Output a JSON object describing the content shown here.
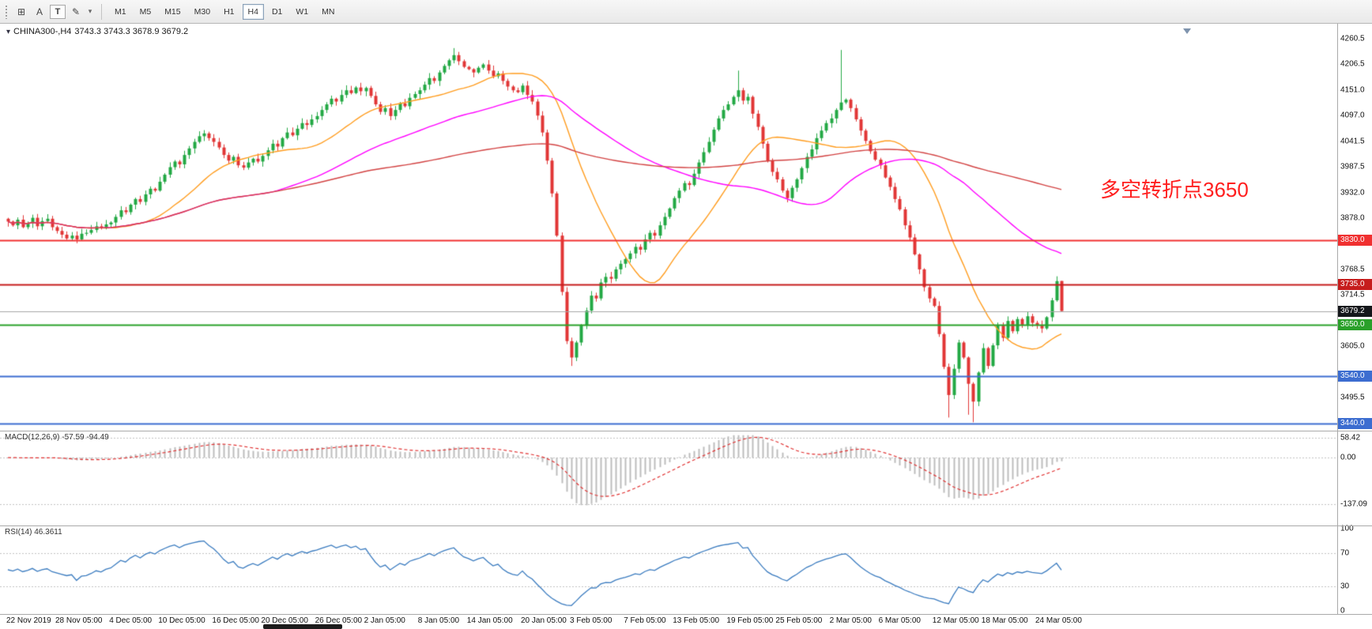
{
  "toolbar": {
    "tools": [
      {
        "id": "grid-tool",
        "glyph": "⊞"
      },
      {
        "id": "text-label-tool",
        "glyph": "A"
      },
      {
        "id": "text-box-tool",
        "glyph": "T"
      },
      {
        "id": "draw-tool",
        "glyph": "✎"
      },
      {
        "id": "draw-tool-caret",
        "glyph": "▾"
      }
    ],
    "timeframes": [
      "M1",
      "M5",
      "M15",
      "M30",
      "H1",
      "H4",
      "D1",
      "W1",
      "MN"
    ],
    "active_timeframe": "H4"
  },
  "chart": {
    "menu_icon": "▾",
    "title_symbol": "CHINA300-,H4",
    "title_ohlc": "3743.3 3743.3 3678.9 3679.2",
    "annotation": {
      "text": "多空转折点3650",
      "color": "#ff1f1f"
    },
    "hlines": [
      {
        "price": 3830,
        "color": "#f03030",
        "width": 2
      },
      {
        "price": 3735,
        "color": "#c61d1d",
        "width": 2
      },
      {
        "price": 3679.2,
        "color": "#a6a6a6",
        "width": 1
      },
      {
        "price": 3650,
        "color": "#2aa02a",
        "width": 2
      },
      {
        "price": 3540,
        "color": "#3c6dd0",
        "width": 2
      },
      {
        "price": 3440,
        "color": "#3c6dd0",
        "width": 2
      }
    ],
    "price_axis": {
      "ticks": [
        "4260.5",
        "4206.5",
        "4151.0",
        "4097.0",
        "4041.5",
        "3987.5",
        "3932.0",
        "3878.0",
        "3824.0",
        "3768.5",
        "3714.5",
        "3605.0",
        "3495.5"
      ],
      "tags": [
        {
          "text": "3830.0",
          "price": 3830,
          "bg": "#f03030"
        },
        {
          "text": "3735.0",
          "price": 3735,
          "bg": "#c61d1d"
        },
        {
          "text": "3679.2",
          "price": 3679.2,
          "bg": "#15171b"
        },
        {
          "text": "3650.0",
          "price": 3650,
          "bg": "#2aa02a"
        },
        {
          "text": "3540.0",
          "price": 3540,
          "bg": "#3c6dd0"
        },
        {
          "text": "3440.0",
          "price": 3440,
          "bg": "#3c6dd0"
        }
      ]
    },
    "time_axis": {
      "labels": [
        {
          "text": "22 Nov 2019",
          "bar": 0
        },
        {
          "text": "28 Nov 05:00",
          "bar": 10
        },
        {
          "text": "4 Dec 05:00",
          "bar": 21
        },
        {
          "text": "10 Dec 05:00",
          "bar": 31
        },
        {
          "text": "16 Dec 05:00",
          "bar": 42
        },
        {
          "text": "20 Dec 05:00",
          "bar": 52
        },
        {
          "text": "26 Dec 05:00",
          "bar": 63
        },
        {
          "text": "2 Jan 05:00",
          "bar": 73
        },
        {
          "text": "8 Jan 05:00",
          "bar": 84
        },
        {
          "text": "14 Jan 05:00",
          "bar": 94
        },
        {
          "text": "20 Jan 05:00",
          "bar": 105
        },
        {
          "text": "3 Feb 05:00",
          "bar": 115
        },
        {
          "text": "7 Feb 05:00",
          "bar": 126
        },
        {
          "text": "13 Feb 05:00",
          "bar": 136
        },
        {
          "text": "19 Feb 05:00",
          "bar": 147
        },
        {
          "text": "25 Feb 05:00",
          "bar": 157
        },
        {
          "text": "2 Mar 05:00",
          "bar": 168
        },
        {
          "text": "6 Mar 05:00",
          "bar": 178
        },
        {
          "text": "12 Mar 05:00",
          "bar": 189
        },
        {
          "text": "18 Mar 05:00",
          "bar": 199
        },
        {
          "text": "24 Mar 05:00",
          "bar": 210
        }
      ]
    }
  },
  "macd": {
    "header": "MACD(12,26,9) -57.59 -94.49",
    "fast": 12,
    "slow": 26,
    "signal": 9,
    "levels": [
      {
        "text": "58.42",
        "value": 58.42
      },
      {
        "text": "0.00",
        "value": 0
      },
      {
        "text": "-137.09",
        "value": -137.09
      }
    ]
  },
  "rsi": {
    "header": "RSI(14) 46.3611",
    "period": 14,
    "levels": [
      {
        "text": "100",
        "value": 100
      },
      {
        "text": "70",
        "value": 70
      },
      {
        "text": "30",
        "value": 30
      },
      {
        "text": "0",
        "value": 0
      }
    ]
  },
  "colors": {
    "candle_up": "#23a844",
    "candle_down": "#e13636",
    "macd_hist": "#bdbdbd",
    "macd_signal": "#e03030",
    "rsi_line": "#3a7bbf",
    "level_line": "#c2c2c2"
  },
  "chart_data": {
    "type": "candlestick",
    "symbol": "CHINA300-",
    "timeframe": "H4",
    "y_axis": {
      "min": 3424,
      "max": 4292
    },
    "macd_axis": {
      "min": -190,
      "max": 70
    },
    "last_ohlc": {
      "open": 3743.3,
      "high": 3743.3,
      "low": 3678.9,
      "close": 3679.2
    },
    "moving_averages": [
      {
        "period": 20,
        "color": "#ff9c1e"
      },
      {
        "period": 55,
        "color": "#ff00ff"
      },
      {
        "period": 150,
        "color": "#d24242"
      }
    ],
    "wick_overrides": {
      "91": {
        "high": 4240
      },
      "110": {
        "high": 4066
      },
      "115": {
        "low": 3562
      },
      "149": {
        "high": 4192
      },
      "170": {
        "high": 4236
      },
      "192": {
        "low": 3452
      },
      "196": {
        "low": 3458
      },
      "197": {
        "low": 3442
      }
    },
    "closes": [
      3870,
      3862,
      3874,
      3858,
      3866,
      3878,
      3860,
      3871,
      3876,
      3858,
      3850,
      3842,
      3834,
      3840,
      3832,
      3844,
      3846,
      3852,
      3860,
      3856,
      3864,
      3868,
      3880,
      3894,
      3890,
      3906,
      3918,
      3912,
      3928,
      3940,
      3936,
      3955,
      3970,
      3986,
      3998,
      3992,
      4012,
      4026,
      4040,
      4052,
      4058,
      4048,
      4040,
      4028,
      4012,
      4000,
      4008,
      3990,
      3985,
      3996,
      4004,
      3998,
      4010,
      4022,
      4036,
      4030,
      4048,
      4060,
      4054,
      4068,
      4080,
      4076,
      4088,
      4095,
      4108,
      4120,
      4132,
      4126,
      4140,
      4150,
      4144,
      4156,
      4148,
      4155,
      4138,
      4120,
      4104,
      4112,
      4095,
      4108,
      4122,
      4116,
      4134,
      4142,
      4150,
      4162,
      4176,
      4170,
      4188,
      4202,
      4214,
      4225,
      4212,
      4200,
      4195,
      4188,
      4198,
      4205,
      4192,
      4180,
      4186,
      4170,
      4158,
      4150,
      4146,
      4160,
      4140,
      4126,
      4096,
      4060,
      4000,
      3930,
      3840,
      3720,
      3615,
      3580,
      3612,
      3648,
      3680,
      3712,
      3706,
      3740,
      3752,
      3748,
      3768,
      3780,
      3790,
      3802,
      3816,
      3810,
      3832,
      3846,
      3840,
      3862,
      3880,
      3898,
      3920,
      3936,
      3952,
      3948,
      3972,
      3996,
      4018,
      4040,
      4066,
      4090,
      4108,
      4120,
      4136,
      4150,
      4128,
      4136,
      4100,
      4072,
      4036,
      4000,
      3976,
      3960,
      3936,
      3920,
      3942,
      3960,
      3984,
      4008,
      4024,
      4048,
      4064,
      4080,
      4090,
      4108,
      4124,
      4130,
      4112,
      4088,
      4064,
      4042,
      4020,
      4002,
      3990,
      3964,
      3944,
      3918,
      3896,
      3862,
      3836,
      3800,
      3768,
      3730,
      3706,
      3690,
      3630,
      3560,
      3500,
      3556,
      3612,
      3580,
      3524,
      3486,
      3548,
      3600,
      3562,
      3606,
      3648,
      3622,
      3658,
      3636,
      3662,
      3650,
      3668,
      3654,
      3648,
      3642,
      3666,
      3702,
      3743,
      3679.2
    ]
  }
}
